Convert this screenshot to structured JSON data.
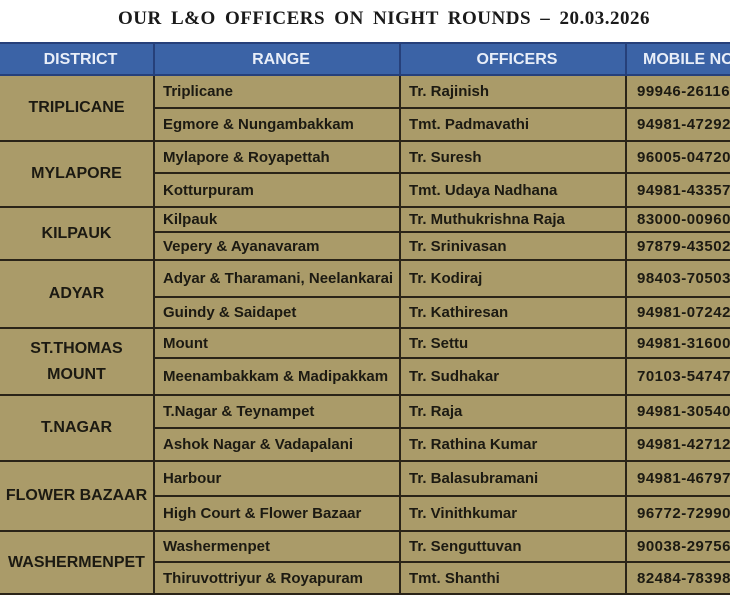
{
  "title": "OUR L&O OFFICERS ON NIGHT ROUNDS – 20.03.2026",
  "headers": [
    "DISTRICT",
    "RANGE",
    "OFFICERS",
    "MOBILE NO"
  ],
  "colors": {
    "header_bg": "#3b63a6",
    "body_bg": "#aa9b69"
  },
  "districts": [
    {
      "name": "TRIPLICANE",
      "rows": [
        {
          "range": "Triplicane",
          "officer": "Tr. Rajinish",
          "mobile": "99946-26116"
        },
        {
          "range": "Egmore &  Nungambakkam",
          "officer": "Tmt. Padmavathi",
          "mobile": "94981-47292"
        }
      ]
    },
    {
      "name": "MYLAPORE",
      "rows": [
        {
          "range": "Mylapore & Royapettah",
          "officer": "Tr. Suresh",
          "mobile": "96005-04720"
        },
        {
          "range": "Kotturpuram",
          "officer": "Tmt. Udaya Nadhana",
          "mobile": "94981-43357"
        }
      ]
    },
    {
      "name": "KILPAUK",
      "rows": [
        {
          "range": "Kilpauk",
          "officer": "Tr. Muthukrishna Raja",
          "mobile": "83000-00960"
        },
        {
          "range": "Vepery  & Ayanavaram",
          "officer": "Tr. Srinivasan",
          "mobile": "97879-43502"
        }
      ]
    },
    {
      "name": "ADYAR",
      "rows": [
        {
          "range": "Adyar & Tharamani, Neelankarai",
          "officer": "Tr. Kodiraj",
          "mobile": "98403-70503"
        },
        {
          "range": "Guindy & Saidapet",
          "officer": "Tr. Kathiresan",
          "mobile": "94981-07242"
        }
      ]
    },
    {
      "name": "ST.THOMAS MOUNT",
      "rows": [
        {
          "range": "Mount",
          "officer": "Tr. Settu",
          "mobile": "94981-31600"
        },
        {
          "range": "Meenambakkam & Madipakkam",
          "officer": "Tr. Sudhakar",
          "mobile": "70103-54747"
        }
      ]
    },
    {
      "name": "T.NAGAR",
      "rows": [
        {
          "range": "T.Nagar & Teynampet",
          "officer": "Tr. Raja",
          "mobile": "94981-30540"
        },
        {
          "range": "Ashok Nagar & Vadapalani",
          "officer": "Tr. Rathina Kumar",
          "mobile": "94981-42712"
        }
      ]
    },
    {
      "name": "FLOWER BAZAAR",
      "rows": [
        {
          "range": "Harbour",
          "officer": "Tr. Balasubramani",
          "mobile": "94981-46797"
        },
        {
          "range": "High Court &  Flower Bazaar",
          "officer": "Tr. Vinithkumar",
          "mobile": "96772-72990"
        }
      ]
    },
    {
      "name": "WASHERMENPET",
      "rows": [
        {
          "range": "Washermenpet",
          "officer": "Tr. Senguttuvan",
          "mobile": "90038-29756"
        },
        {
          "range": "Thiruvottriyur & Royapuram",
          "officer": "Tmt. Shanthi",
          "mobile": "82484-78398"
        }
      ]
    }
  ]
}
